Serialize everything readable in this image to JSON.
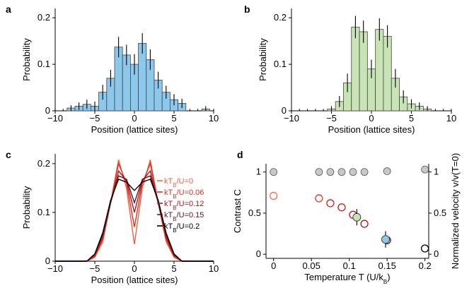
{
  "colors": {
    "blue_bar": "#8cc8ec",
    "green_bar": "#c9e4b4",
    "bar_edge": "#444444",
    "red_light": "#f07050",
    "red_dark": "#c0102a",
    "grey_marker": "#c8c8c8"
  },
  "chart_data": [
    {
      "panel": "a",
      "type": "bar",
      "xlabel": "Position (lattice sites)",
      "ylabel": "Probability",
      "xlim": [
        -10,
        10
      ],
      "ylim": [
        0,
        0.22
      ],
      "xticks": [
        -10,
        -5,
        0,
        5,
        10
      ],
      "xtick_labels": [
        "−10",
        "−5",
        "0",
        "5",
        "10"
      ],
      "yticks": [
        0,
        0.1,
        0.2
      ],
      "ytick_labels": [
        "0",
        "0.1",
        "0.2"
      ],
      "x": [
        -10,
        -9,
        -8,
        -7,
        -6,
        -5,
        -4,
        -3,
        -2,
        -1,
        0,
        1,
        2,
        3,
        4,
        5,
        6,
        7,
        8,
        9,
        10
      ],
      "values": [
        0,
        0,
        0.006,
        0.01,
        0.014,
        0.01,
        0.04,
        0.07,
        0.137,
        0.12,
        0.1,
        0.145,
        0.11,
        0.066,
        0.04,
        0.024,
        0.016,
        0,
        0,
        0.004,
        0
      ],
      "errors": [
        0.004,
        0.004,
        0.006,
        0.008,
        0.01,
        0.01,
        0.016,
        0.018,
        0.022,
        0.022,
        0.022,
        0.022,
        0.022,
        0.018,
        0.014,
        0.012,
        0.01,
        0.004,
        0.004,
        0.006,
        0.004
      ]
    },
    {
      "panel": "b",
      "type": "bar",
      "xlabel": "Position (lattice sites)",
      "ylabel": "Probability",
      "xlim": [
        -10,
        10
      ],
      "ylim": [
        0,
        0.22
      ],
      "xticks": [
        -10,
        -5,
        0,
        5,
        10
      ],
      "xtick_labels": [
        "−10",
        "−5",
        "0",
        "5",
        "10"
      ],
      "yticks": [
        0,
        0.1,
        0.2
      ],
      "ytick_labels": [
        "0",
        "0.1",
        "0.2"
      ],
      "x": [
        -10,
        -9,
        -8,
        -7,
        -6,
        -5,
        -4,
        -3,
        -2,
        -1,
        0,
        1,
        2,
        3,
        4,
        5,
        6,
        7,
        8,
        9,
        10
      ],
      "values": [
        0,
        0,
        0,
        0,
        0,
        0.004,
        0.02,
        0.06,
        0.18,
        0.17,
        0.09,
        0.175,
        0.16,
        0.07,
        0.03,
        0.015,
        0.01,
        0.004,
        0,
        0,
        0
      ],
      "errors": [
        0.004,
        0.004,
        0.004,
        0.004,
        0.004,
        0.006,
        0.012,
        0.02,
        0.024,
        0.024,
        0.02,
        0.024,
        0.024,
        0.02,
        0.014,
        0.01,
        0.008,
        0.006,
        0.004,
        0.004,
        0.004
      ]
    },
    {
      "panel": "c",
      "type": "line",
      "xlabel": "Position (lattice sites)",
      "ylabel": "Probability",
      "xlim": [
        -10,
        10
      ],
      "ylim": [
        0,
        0.22
      ],
      "xticks": [
        -10,
        -5,
        0,
        5,
        10
      ],
      "xtick_labels": [
        "−10",
        "−5",
        "0",
        "5",
        "10"
      ],
      "yticks": [
        0,
        0.1,
        0.2
      ],
      "ytick_labels": [
        "0",
        "0.1",
        "0.2"
      ],
      "x": [
        -10,
        -9,
        -8,
        -7,
        -6,
        -5,
        -4,
        -3,
        -2,
        -1,
        0,
        1,
        2,
        3,
        4,
        5,
        6,
        7,
        8,
        9,
        10
      ],
      "legend": [
        "kT_B/U=0",
        "kT_B/U=0.06",
        "kT_B/U=0.12",
        "kT_B/U=0.15",
        "kT_B/U=0.2"
      ],
      "series": [
        {
          "color": "#f06040",
          "values": [
            0,
            0,
            0,
            0,
            0,
            0.008,
            0.04,
            0.12,
            0.208,
            0.15,
            0.035,
            0.15,
            0.208,
            0.12,
            0.04,
            0.008,
            0,
            0,
            0,
            0,
            0
          ]
        },
        {
          "color": "#e03020",
          "values": [
            0,
            0,
            0,
            0,
            0,
            0.01,
            0.045,
            0.12,
            0.2,
            0.16,
            0.07,
            0.16,
            0.2,
            0.12,
            0.045,
            0.01,
            0,
            0,
            0,
            0,
            0
          ]
        },
        {
          "color": "#b01818",
          "values": [
            0,
            0,
            0,
            0,
            0,
            0.012,
            0.05,
            0.12,
            0.185,
            0.165,
            0.1,
            0.165,
            0.185,
            0.12,
            0.05,
            0.012,
            0,
            0,
            0,
            0,
            0
          ]
        },
        {
          "color": "#6a1020",
          "values": [
            0,
            0,
            0,
            0,
            0,
            0.014,
            0.055,
            0.12,
            0.175,
            0.168,
            0.12,
            0.168,
            0.175,
            0.12,
            0.055,
            0.014,
            0,
            0,
            0,
            0,
            0
          ]
        },
        {
          "color": "#000000",
          "values": [
            0,
            0,
            0,
            0,
            0,
            0.015,
            0.058,
            0.125,
            0.168,
            0.162,
            0.145,
            0.162,
            0.168,
            0.125,
            0.058,
            0.015,
            0,
            0,
            0,
            0,
            0
          ]
        }
      ]
    },
    {
      "panel": "d",
      "type": "scatter",
      "xlabel": "Temperature  T (U/k_B)",
      "ylabel": "Contrast C",
      "ylabel_right": "Normalized velocity v/v(T=0)",
      "xlim": [
        -0.01,
        0.205
      ],
      "ylim": [
        -0.05,
        1.1
      ],
      "xticks": [
        0,
        0.05,
        0.1,
        0.15,
        0.2
      ],
      "xtick_labels": [
        "0",
        "0.05",
        "0.1",
        "0.15",
        "0.2"
      ],
      "yticks": [
        0,
        0.5,
        1
      ],
      "ytick_labels": [
        "0",
        "0.5",
        "1"
      ],
      "yticks_right": [
        0,
        0.5,
        1
      ],
      "ytick_labels_right": [
        "0",
        "0.5",
        "1"
      ],
      "velocity_points": [
        {
          "x": 0,
          "y": 1.0
        },
        {
          "x": 0.06,
          "y": 1.0
        },
        {
          "x": 0.075,
          "y": 1.0
        },
        {
          "x": 0.09,
          "y": 1.0
        },
        {
          "x": 0.105,
          "y": 1.0
        },
        {
          "x": 0.12,
          "y": 1.0
        },
        {
          "x": 0.15,
          "y": 1.01
        },
        {
          "x": 0.2,
          "y": 1.03
        }
      ],
      "contrast_points": [
        {
          "x": 0,
          "y": 0.71,
          "color": "#f07050"
        },
        {
          "x": 0.06,
          "y": 0.68,
          "color": "#e83828"
        },
        {
          "x": 0.075,
          "y": 0.62,
          "color": "#d42020"
        },
        {
          "x": 0.09,
          "y": 0.57,
          "color": "#c81818"
        },
        {
          "x": 0.105,
          "y": 0.48,
          "color": "#c01020"
        },
        {
          "x": 0.12,
          "y": 0.37,
          "color": "#b01020"
        },
        {
          "x": 0.15,
          "y": 0.17,
          "color": "#60101c"
        },
        {
          "x": 0.2,
          "y": 0.07,
          "color": "#000000"
        }
      ],
      "measured_points": [
        {
          "x": 0.11,
          "y": 0.45,
          "err": 0.1,
          "fill": "#c9e4b4"
        },
        {
          "x": 0.148,
          "y": 0.18,
          "err": 0.1,
          "fill": "#8cc8ec"
        }
      ]
    }
  ]
}
